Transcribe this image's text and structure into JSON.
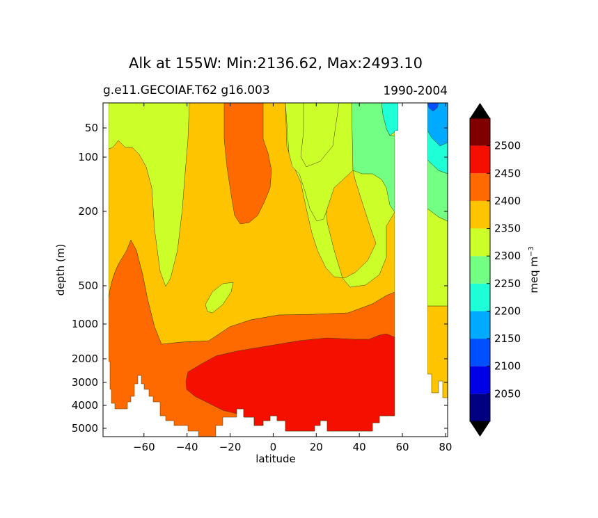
{
  "chart_data": {
    "type": "contour",
    "title": "Alk at 155W: Min:2136.62, Max:2493.10",
    "subtitle_left": "g.e11.GECOIAF.T62 g16.003",
    "subtitle_right": "1990-2004",
    "xlabel": "latitude",
    "ylabel": "depth (m)",
    "xlim": [
      -79,
      81
    ],
    "ylim": [
      5500,
      0
    ],
    "x_ticks": [
      -60,
      -40,
      -20,
      0,
      20,
      40,
      60,
      80
    ],
    "x_tick_labels": [
      "−60",
      "−40",
      "−20",
      "0",
      "20",
      "40",
      "60",
      "80"
    ],
    "y_ticks": [
      50,
      100,
      200,
      500,
      1000,
      2000,
      3000,
      4000,
      5000
    ],
    "y_tick_labels": [
      "50",
      "100",
      "200",
      "500",
      "1000",
      "2000",
      "3000",
      "4000",
      "5000"
    ],
    "colorbar": {
      "label_main": "meq m",
      "label_exp": "−3",
      "levels": [
        2000,
        2050,
        2100,
        2150,
        2200,
        2250,
        2300,
        2350,
        2400,
        2450,
        2500,
        2550
      ],
      "tick_values": [
        2050,
        2100,
        2150,
        2200,
        2250,
        2300,
        2350,
        2400,
        2450,
        2500
      ],
      "tick_labels": [
        "2050",
        "2100",
        "2150",
        "2200",
        "2250",
        "2300",
        "2350",
        "2400",
        "2450",
        "2500"
      ],
      "colors": [
        "#000080",
        "#0000e6",
        "#0050ff",
        "#00aaff",
        "#1effd8",
        "#73ff84",
        "#ccff2a",
        "#ffc400",
        "#ff6a00",
        "#f50f00",
        "#800000"
      ],
      "over_color": "#000000",
      "under_color": "#000000"
    },
    "regions": [
      {
        "name": "band-2400-2450",
        "level_min": 2400,
        "level_max": 2450,
        "color": "#ff6a00"
      },
      {
        "name": "band-2350-2400",
        "level_min": 2350,
        "level_max": 2400,
        "color": "#ffc400"
      },
      {
        "name": "band-2300-2350",
        "level_min": 2300,
        "level_max": 2350,
        "color": "#ccff2a"
      },
      {
        "name": "band-2250-2300",
        "level_min": 2250,
        "level_max": 2300,
        "color": "#73ff84"
      },
      {
        "name": "band-2200-2250",
        "level_min": 2200,
        "level_max": 2250,
        "color": "#1effd8"
      },
      {
        "name": "band-2150-2200",
        "level_min": 2150,
        "level_max": 2200,
        "color": "#00aaff"
      },
      {
        "name": "band-2100-2150",
        "level_min": 2100,
        "level_max": 2150,
        "color": "#0050ff"
      },
      {
        "name": "band-2450-2500",
        "level_min": 2450,
        "level_max": 2500,
        "color": "#f50f00"
      }
    ]
  }
}
